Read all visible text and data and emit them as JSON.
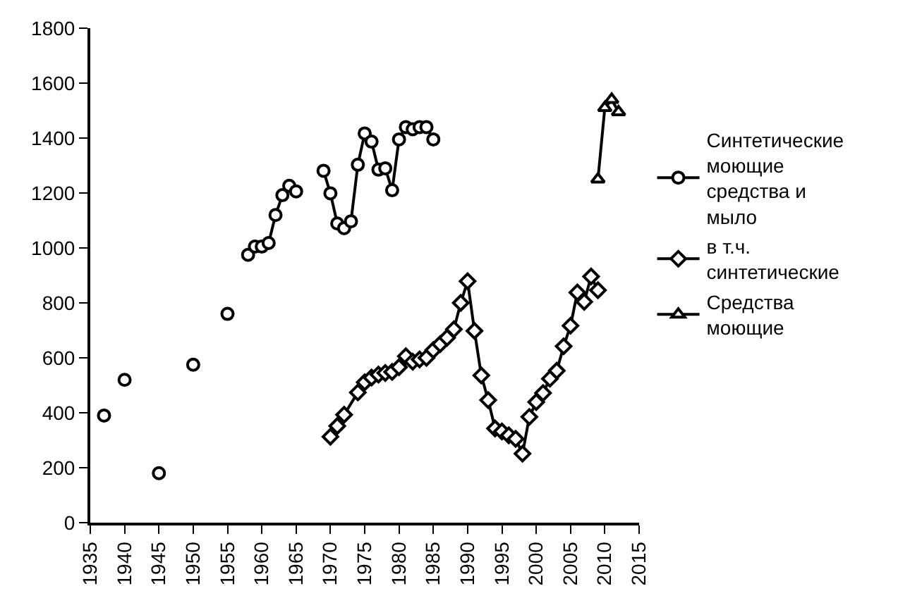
{
  "chart_data": {
    "type": "line",
    "xlim": [
      1935,
      2015
    ],
    "xticks": [
      1935,
      1940,
      1945,
      1950,
      1955,
      1960,
      1965,
      1970,
      1975,
      1980,
      1985,
      1990,
      1995,
      2000,
      2005,
      2010,
      2015
    ],
    "ylim": [
      0,
      1800
    ],
    "yticks": [
      0,
      200,
      400,
      600,
      800,
      1000,
      1200,
      1400,
      1600,
      1800
    ],
    "grid": false,
    "legend": "right",
    "line_style": "solid",
    "series": [
      {
        "name": "Синтетические моющие средства и мыло",
        "color": "#000000",
        "marker": "circle",
        "x": [
          1937,
          1938,
          1940,
          1941,
          1945,
          1946,
          1950,
          1951,
          1955,
          1956,
          1958,
          1959,
          1960,
          1961,
          1962,
          1963,
          1964,
          1965,
          1966,
          1969,
          1970,
          1971,
          1972,
          1973,
          1974,
          1975,
          1976,
          1977,
          1978,
          1979,
          1980,
          1981,
          1982,
          1983,
          1984,
          1985
        ],
        "values": [
          390,
          null,
          520,
          null,
          180,
          null,
          575,
          null,
          760,
          null,
          975,
          1005,
          1005,
          1018,
          1120,
          1192,
          1226,
          1206,
          null,
          1281,
          1199,
          1089,
          1072,
          1097,
          1303,
          1417,
          1387,
          1285,
          1290,
          1210,
          1395,
          1440,
          1432,
          1440,
          1440,
          1395
        ]
      },
      {
        "name": "в т.ч. синтетические",
        "color": "#000000",
        "marker": "diamond",
        "x": [
          1970,
          1971,
          1972,
          1974,
          1975,
          1976,
          1977,
          1978,
          1979,
          1980,
          1981,
          1982,
          1983,
          1984,
          1985,
          1986,
          1987,
          1988,
          1989,
          1990,
          1991,
          1992,
          1993,
          1994,
          1995,
          1996,
          1997,
          1998,
          1999,
          2000,
          2001,
          2002,
          2003,
          2004,
          2005,
          2006,
          2007,
          2008,
          2009
        ],
        "values": [
          313,
          352,
          393,
          474,
          511,
          528,
          539,
          545,
          549,
          566,
          606,
          586,
          594,
          600,
          628,
          650,
          673,
          704,
          800,
          879,
          698,
          536,
          446,
          343,
          332,
          318,
          305,
          251,
          385,
          439,
          472,
          524,
          553,
          642,
          717,
          838,
          804,
          896,
          846
        ]
      },
      {
        "name": "Средства моющие",
        "color": "#000000",
        "marker": "triangle",
        "x": [
          2009,
          2010,
          2011,
          2012
        ],
        "values": [
          1250,
          1510,
          1540,
          1495
        ]
      }
    ]
  }
}
